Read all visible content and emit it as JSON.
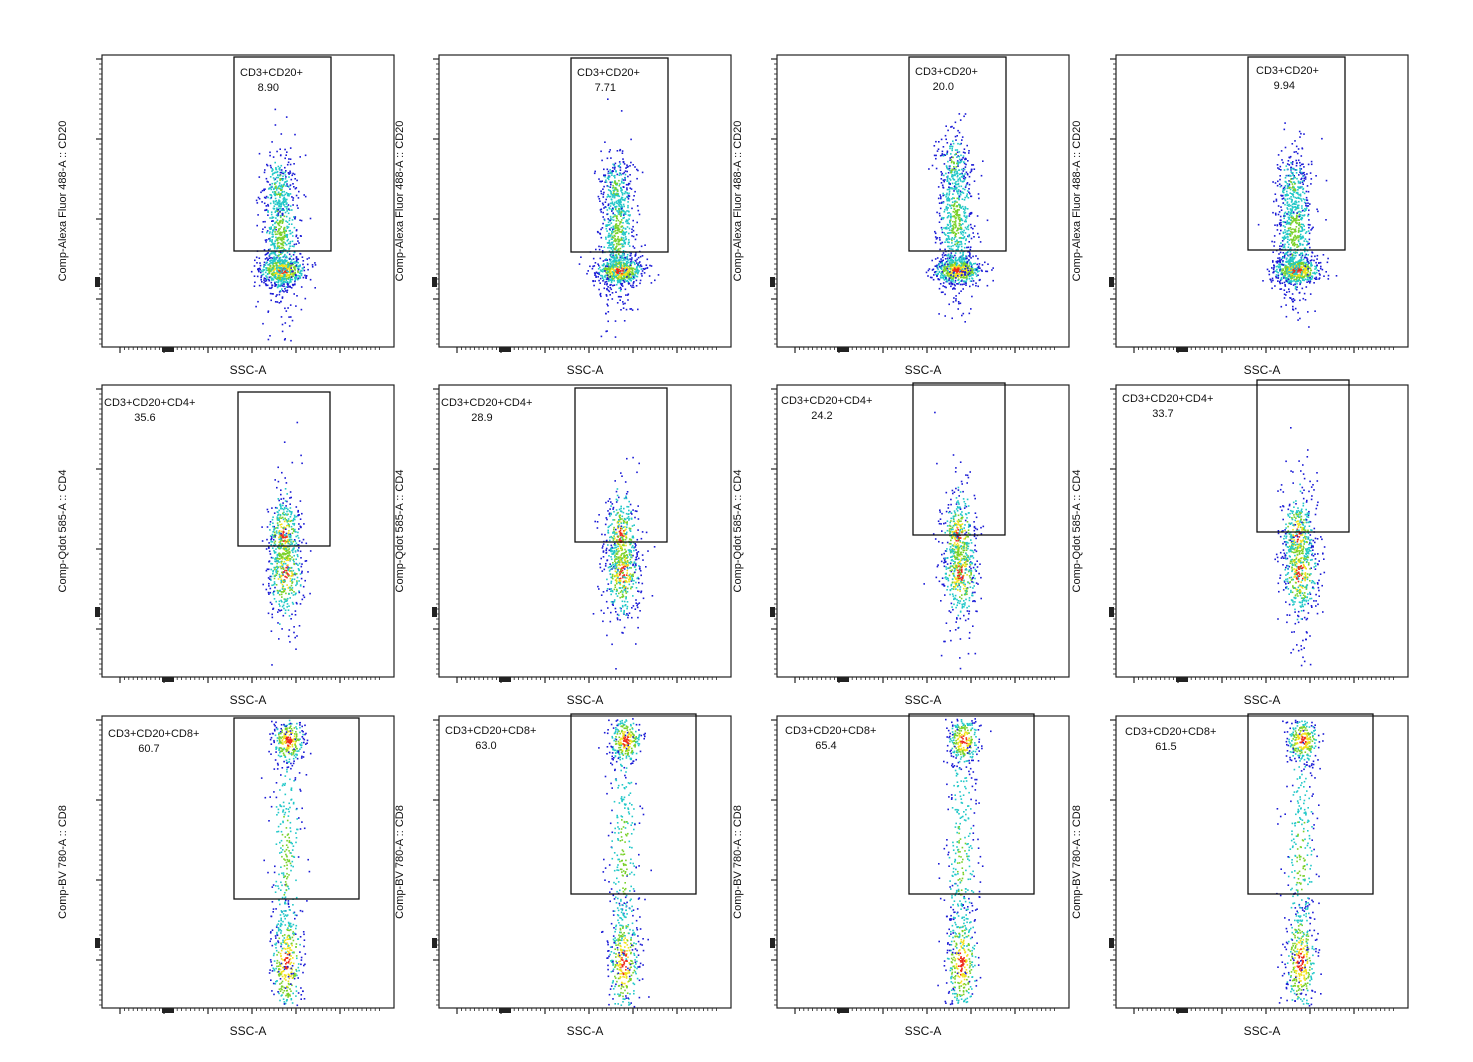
{
  "chart_data": [
    {
      "type": "scatter",
      "row": 1,
      "col": 1,
      "xlabel": "SSC-A",
      "ylabel": "Comp-Alexa Fluor 488-A :: CD20",
      "gate": {
        "name": "CD3+CD20+",
        "value": "8.90"
      }
    },
    {
      "type": "scatter",
      "row": 1,
      "col": 2,
      "xlabel": "SSC-A",
      "ylabel": "Comp-Alexa Fluor 488-A :: CD20",
      "gate": {
        "name": "CD3+CD20+",
        "value": "7.71"
      }
    },
    {
      "type": "scatter",
      "row": 1,
      "col": 3,
      "xlabel": "SSC-A",
      "ylabel": "Comp-Alexa Fluor 488-A :: CD20",
      "gate": {
        "name": "CD3+CD20+",
        "value": "20.0"
      }
    },
    {
      "type": "scatter",
      "row": 1,
      "col": 4,
      "xlabel": "SSC-A",
      "ylabel": "Comp-Alexa Fluor 488-A :: CD20",
      "gate": {
        "name": "CD3+CD20+",
        "value": "9.94"
      }
    },
    {
      "type": "scatter",
      "row": 2,
      "col": 1,
      "xlabel": "SSC-A",
      "ylabel": "Comp-Qdot 585-A :: CD4",
      "gate": {
        "name": "CD3+CD20+CD4+",
        "value": "35.6"
      }
    },
    {
      "type": "scatter",
      "row": 2,
      "col": 2,
      "xlabel": "SSC-A",
      "ylabel": "Comp-Qdot 585-A :: CD4",
      "gate": {
        "name": "CD3+CD20+CD4+",
        "value": "28.9"
      }
    },
    {
      "type": "scatter",
      "row": 2,
      "col": 3,
      "xlabel": "SSC-A",
      "ylabel": "Comp-Qdot 585-A :: CD4",
      "gate": {
        "name": "CD3+CD20+CD4+",
        "value": "24.2"
      }
    },
    {
      "type": "scatter",
      "row": 2,
      "col": 4,
      "xlabel": "SSC-A",
      "ylabel": "Comp-Qdot 585-A :: CD4",
      "gate": {
        "name": "CD3+CD20+CD4+",
        "value": "33.7"
      }
    },
    {
      "type": "scatter",
      "row": 3,
      "col": 1,
      "xlabel": "SSC-A",
      "ylabel": "Comp-BV 780-A :: CD8",
      "gate": {
        "name": "CD3+CD20+CD8+",
        "value": "60.7"
      }
    },
    {
      "type": "scatter",
      "row": 3,
      "col": 2,
      "xlabel": "SSC-A",
      "ylabel": "Comp-BV 780-A :: CD8",
      "gate": {
        "name": "CD3+CD20+CD8+",
        "value": "63.0"
      }
    },
    {
      "type": "scatter",
      "row": 3,
      "col": 3,
      "xlabel": "SSC-A",
      "ylabel": "Comp-BV 780-A :: CD8",
      "gate": {
        "name": "CD3+CD20+CD8+",
        "value": "65.4"
      }
    },
    {
      "type": "scatter",
      "row": 3,
      "col": 4,
      "xlabel": "SSC-A",
      "ylabel": "Comp-BV 780-A :: CD8",
      "gate": {
        "name": "CD3+CD20+CD8+",
        "value": "61.5"
      }
    }
  ],
  "colors": {
    "density_low": "#1a1ad6",
    "density_mid": "#22c8c8",
    "density_midhigh": "#7ad12a",
    "density_high": "#f2e21a",
    "density_peak": "#ee2a1a"
  }
}
